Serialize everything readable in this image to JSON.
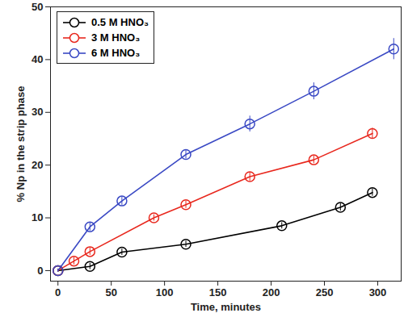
{
  "chart_data": {
    "type": "line",
    "xlabel": "Time, minutes",
    "ylabel": "% Np in the strip phase",
    "xlim": [
      -7,
      322
    ],
    "xticks": [
      0,
      50,
      100,
      150,
      200,
      250,
      300
    ],
    "ylim": [
      -2,
      50
    ],
    "yticks": [
      0,
      10,
      20,
      30,
      40,
      50
    ],
    "grid": false,
    "legend": "upper left",
    "marker": "circle",
    "series": [
      {
        "name": "0.5 M HNO₃",
        "color": "#000000",
        "x": [
          0,
          30,
          60,
          120,
          210,
          265,
          295
        ],
        "values": [
          0,
          0.8,
          3.5,
          5,
          8.5,
          12,
          14.8
        ],
        "errors": [
          0.3,
          0.6,
          0.6,
          0.6,
          0.6,
          0.7,
          0.7
        ]
      },
      {
        "name": "3 M HNO₃",
        "color": "#e8281e",
        "x": [
          0,
          15,
          30,
          90,
          120,
          180,
          240,
          295
        ],
        "values": [
          0,
          1.8,
          3.6,
          10,
          12.5,
          17.8,
          21,
          26
        ],
        "errors": [
          0.3,
          0.7,
          0.7,
          0.6,
          0.7,
          0.8,
          0.7,
          1
        ]
      },
      {
        "name": "6 M HNO₃",
        "color": "#3a49c4",
        "x": [
          0,
          30,
          60,
          120,
          180,
          240,
          315
        ],
        "values": [
          0,
          8.3,
          13.2,
          22,
          27.8,
          34,
          42
        ],
        "errors": [
          0.3,
          0.8,
          0.8,
          0.8,
          1.5,
          1.6,
          2
        ]
      }
    ]
  }
}
